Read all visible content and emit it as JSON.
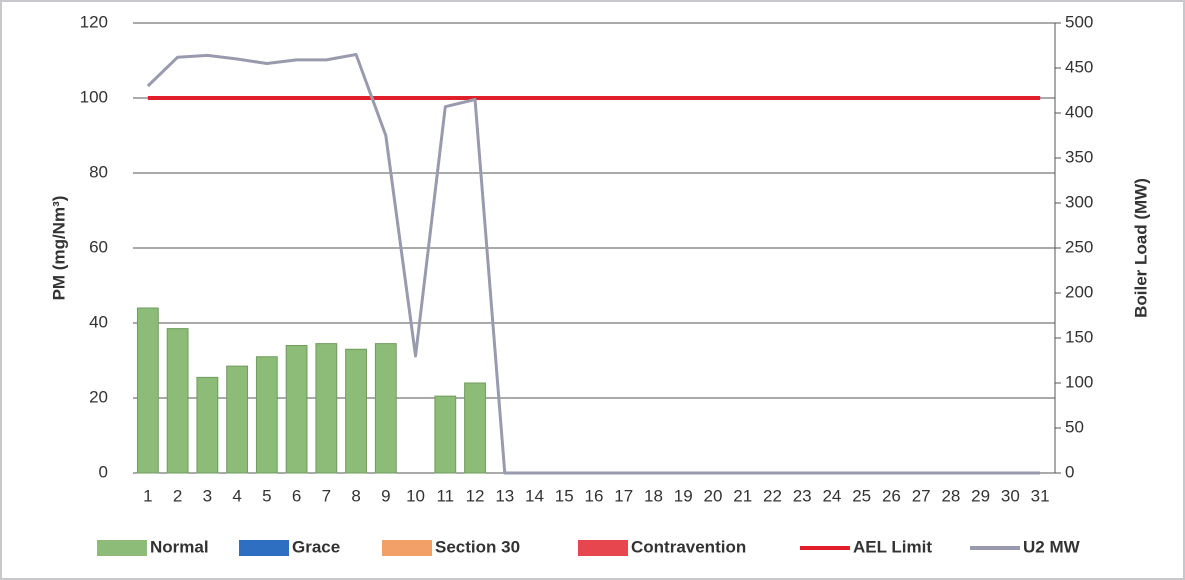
{
  "chart_data": {
    "type": "bar",
    "categories": [
      "1",
      "2",
      "3",
      "4",
      "5",
      "6",
      "7",
      "8",
      "9",
      "10",
      "11",
      "12",
      "13",
      "14",
      "15",
      "16",
      "17",
      "18",
      "19",
      "20",
      "21",
      "22",
      "23",
      "24",
      "25",
      "26",
      "27",
      "28",
      "29",
      "30",
      "31"
    ],
    "ylabel": "PM (mg/Nm³)",
    "y2label": "Boiler Load (MW)",
    "ylim": [
      0,
      120
    ],
    "yticks": [
      0,
      20,
      40,
      60,
      80,
      100,
      120
    ],
    "y2lim": [
      0,
      500
    ],
    "y2ticks": [
      0,
      50,
      100,
      150,
      200,
      250,
      300,
      350,
      400,
      450,
      500
    ],
    "grid": true,
    "legend": "bottom",
    "series": [
      {
        "name": "Normal",
        "type": "bar",
        "color": "#8dbb78",
        "values": [
          44,
          38.5,
          25.5,
          28.5,
          31,
          34,
          34.5,
          33,
          34.5,
          null,
          20.5,
          24,
          null,
          null,
          null,
          null,
          null,
          null,
          null,
          null,
          null,
          null,
          null,
          null,
          null,
          null,
          null,
          null,
          null,
          null,
          null
        ]
      },
      {
        "name": "Grace",
        "type": "bar",
        "color": "#2f6fc2",
        "values": [
          null,
          null,
          null,
          null,
          null,
          null,
          null,
          null,
          null,
          null,
          null,
          null,
          null,
          null,
          null,
          null,
          null,
          null,
          null,
          null,
          null,
          null,
          null,
          null,
          null,
          null,
          null,
          null,
          null,
          null,
          null
        ]
      },
      {
        "name": "Section 30",
        "type": "bar",
        "color": "#f2a068",
        "values": [
          null,
          null,
          null,
          null,
          null,
          null,
          null,
          null,
          null,
          null,
          null,
          null,
          null,
          null,
          null,
          null,
          null,
          null,
          null,
          null,
          null,
          null,
          null,
          null,
          null,
          null,
          null,
          null,
          null,
          null,
          null
        ]
      },
      {
        "name": "Contravention",
        "type": "bar",
        "color": "#e8464f",
        "values": [
          null,
          null,
          null,
          null,
          null,
          null,
          null,
          null,
          null,
          null,
          null,
          null,
          null,
          null,
          null,
          null,
          null,
          null,
          null,
          null,
          null,
          null,
          null,
          null,
          null,
          null,
          null,
          null,
          null,
          null,
          null
        ]
      },
      {
        "name": "AEL Limit",
        "type": "line",
        "color": "#e01f2b",
        "values": [
          100,
          100,
          100,
          100,
          100,
          100,
          100,
          100,
          100,
          100,
          100,
          100,
          100,
          100,
          100,
          100,
          100,
          100,
          100,
          100,
          100,
          100,
          100,
          100,
          100,
          100,
          100,
          100,
          100,
          100,
          100
        ]
      },
      {
        "name": "U2 MW",
        "type": "line",
        "axis": "y2",
        "color": "#9a9aae",
        "values": [
          430,
          462,
          464,
          460,
          455,
          459,
          459,
          465,
          375,
          130,
          407,
          415,
          0,
          0,
          0,
          0,
          0,
          0,
          0,
          0,
          0,
          0,
          0,
          0,
          0,
          0,
          0,
          0,
          0,
          0,
          0
        ]
      }
    ]
  }
}
